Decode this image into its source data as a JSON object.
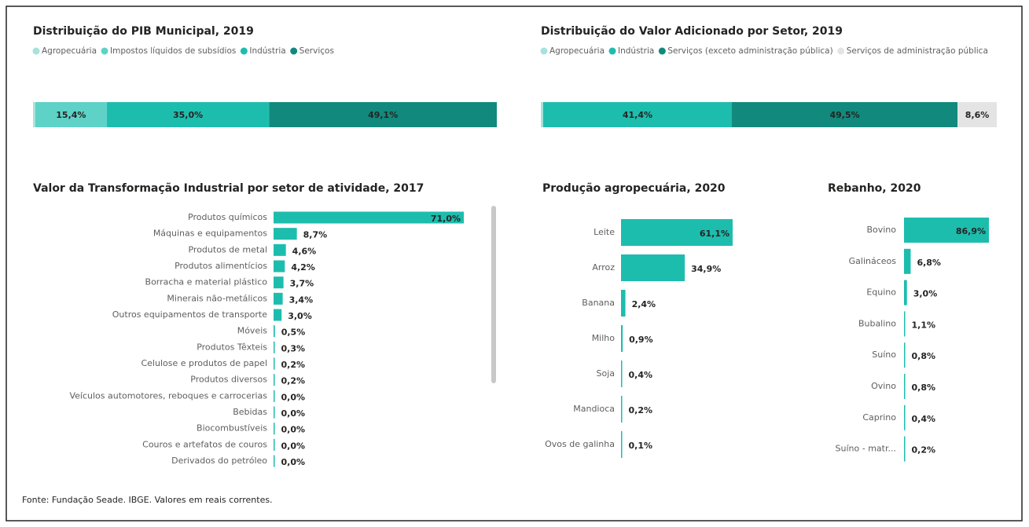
{
  "chart_data": [
    {
      "type": "stacked-bar",
      "title": "Distribuição do PIB Municipal, 2019",
      "series": [
        {
          "name": "Agropecuária",
          "color": "#a6e3dc",
          "values": [
            0.5
          ],
          "value_labels": [
            null
          ]
        },
        {
          "name": "Impostos líquidos de subsídios",
          "color": "#5ed2c7",
          "values": [
            15.4
          ],
          "value_labels": [
            "15,4%"
          ]
        },
        {
          "name": "Indústria",
          "color": "#1dbdae",
          "values": [
            35.0
          ],
          "value_labels": [
            "35,0%"
          ]
        },
        {
          "name": "Serviços",
          "color": "#12897d",
          "values": [
            49.1
          ],
          "value_labels": [
            "49,1%"
          ]
        }
      ]
    },
    {
      "type": "stacked-bar",
      "title": "Distribuição do Valor Adicionado por Setor, 2019",
      "series": [
        {
          "name": "Agropecuária",
          "color": "#a6e3dc",
          "values": [
            0.5
          ],
          "value_labels": [
            null
          ]
        },
        {
          "name": "Indústria",
          "color": "#1dbdae",
          "values": [
            41.4
          ],
          "value_labels": [
            "41,4%"
          ]
        },
        {
          "name": "Serviços (exceto administração pública)",
          "color": "#12897d",
          "values": [
            49.5
          ],
          "value_labels": [
            "49,5%"
          ]
        },
        {
          "name": "Serviços de administração pública",
          "color": "#e4e4e4",
          "values": [
            8.6
          ],
          "value_labels": [
            "8,6%"
          ]
        }
      ]
    },
    {
      "type": "bar",
      "title": "Valor da Transformação Industrial por setor de atividade, 2017",
      "color": "#1dbdae",
      "categories": [
        "Produtos químicos",
        "Máquinas e equipamentos",
        "Produtos de metal",
        "Produtos alimentícios",
        "Borracha e material plástico",
        "Minerais não-metálicos",
        "Outros equipamentos de transporte",
        "Móveis",
        "Produtos Têxteis",
        "Celulose e produtos de papel",
        "Produtos diversos",
        "Veículos automotores, reboques e carrocerias",
        "Bebidas",
        "Biocombustíveis",
        "Couros e artefatos de couros",
        "Derivados do petróleo"
      ],
      "values": [
        71.0,
        8.7,
        4.6,
        4.2,
        3.7,
        3.4,
        3.0,
        0.5,
        0.3,
        0.2,
        0.2,
        0.0,
        0.0,
        0.0,
        0.0,
        0.0
      ],
      "value_labels": [
        "71,0%",
        "8,7%",
        "4,6%",
        "4,2%",
        "3,7%",
        "3,4%",
        "3,0%",
        "0,5%",
        "0,3%",
        "0,2%",
        "0,2%",
        "0,0%",
        "0,0%",
        "0,0%",
        "0,0%",
        "0,0%"
      ]
    },
    {
      "type": "bar",
      "title": "Produção agropecuária, 2020",
      "color": "#1dbdae",
      "categories": [
        "Leite",
        "Arroz",
        "Banana",
        "Milho",
        "Soja",
        "Mandioca",
        "Ovos de galinha"
      ],
      "values": [
        61.1,
        34.9,
        2.4,
        0.9,
        0.4,
        0.2,
        0.1
      ],
      "value_labels": [
        "61,1%",
        "34,9%",
        "2,4%",
        "0,9%",
        "0,4%",
        "0,2%",
        "0,1%"
      ]
    },
    {
      "type": "bar",
      "title": "Rebanho, 2020",
      "color": "#1dbdae",
      "categories": [
        "Bovino",
        "Galináceos",
        "Equino",
        "Bubalino",
        "Suíno",
        "Ovino",
        "Caprino",
        "Suíno - matr..."
      ],
      "values": [
        86.9,
        6.8,
        3.0,
        1.1,
        0.8,
        0.8,
        0.4,
        0.2
      ],
      "value_labels": [
        "86,9%",
        "6,8%",
        "3,0%",
        "1,1%",
        "0,8%",
        "0,8%",
        "0,4%",
        "0,2%"
      ]
    }
  ],
  "source": "Fonte: Fundação Seade. IBGE. Valores em reais correntes."
}
